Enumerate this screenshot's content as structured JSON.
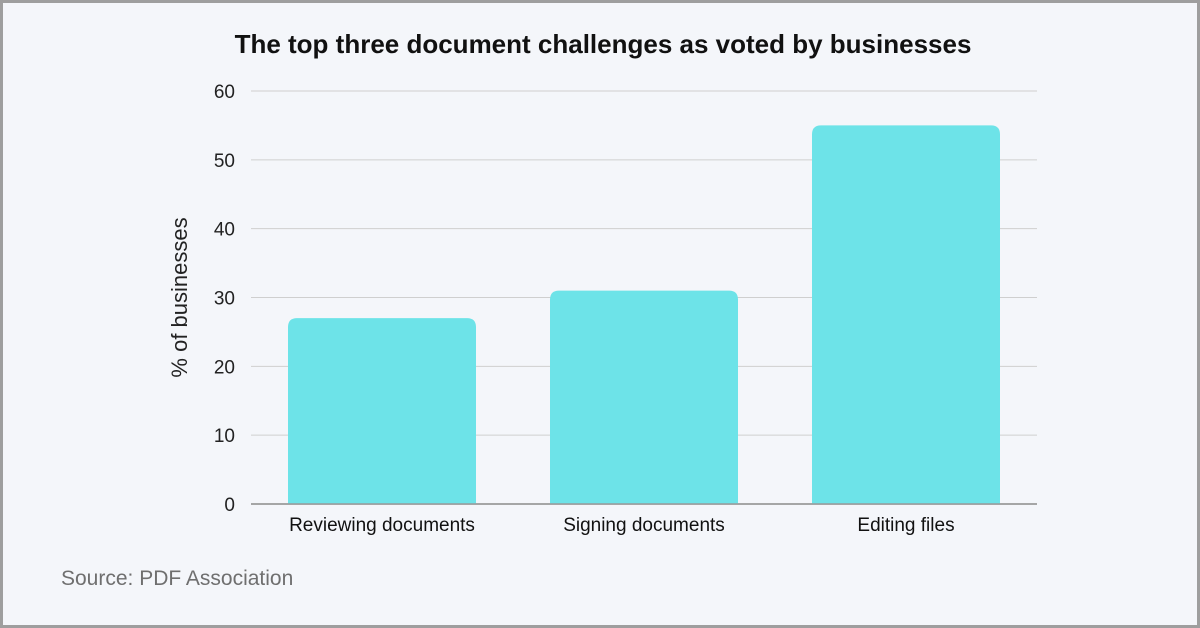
{
  "chart_data": {
    "type": "bar",
    "title": "The top three document challenges as voted by businesses",
    "categories": [
      "Reviewing documents",
      "Signing documents",
      "Editing files"
    ],
    "values": [
      27,
      31,
      55
    ],
    "xlabel": "",
    "ylabel": "% of businesses",
    "ylim": [
      0,
      60
    ],
    "yticks": [
      "0",
      "10",
      "20",
      "30",
      "40",
      "50",
      "60"
    ],
    "grid": true,
    "bar_color": "#6de3e8"
  },
  "footer": {
    "source": "Source: PDF Association"
  }
}
